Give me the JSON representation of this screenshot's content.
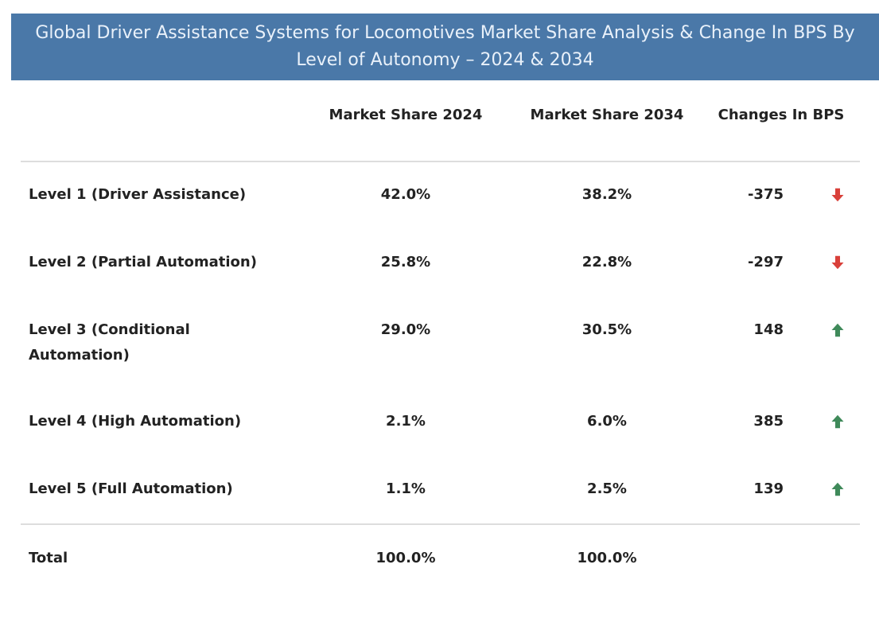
{
  "chart_data": {
    "type": "table",
    "title": "Global Driver Assistance Systems for Locomotives Market Share Analysis & Change In BPS By Level of Autonomy – 2024 & 2034",
    "columns": [
      "",
      "Market Share 2024",
      "Market Share 2034",
      "Changes In BPS"
    ],
    "rows": [
      {
        "label": "Level 1 (Driver Assistance)",
        "share_2024": "42.0%",
        "share_2034": "38.2%",
        "bps": "-375",
        "trend": "down"
      },
      {
        "label": "Level 2 (Partial Automation)",
        "share_2024": "25.8%",
        "share_2034": "22.8%",
        "bps": "-297",
        "trend": "down"
      },
      {
        "label": "Level 3 (Conditional Automation)",
        "share_2024": "29.0%",
        "share_2034": "30.5%",
        "bps": "148",
        "trend": "up"
      },
      {
        "label": "Level 4 (High Automation)",
        "share_2024": "2.1%",
        "share_2034": "6.0%",
        "bps": "385",
        "trend": "up"
      },
      {
        "label": "Level 5 (Full Automation)",
        "share_2024": "1.1%",
        "share_2034": "2.5%",
        "bps": "139",
        "trend": "up"
      }
    ],
    "total": {
      "label": "Total",
      "share_2024": "100.0%",
      "share_2034": "100.0%"
    }
  },
  "colors": {
    "banner": "#4a78a8",
    "up": "#3f8a5a",
    "down": "#d9403a"
  }
}
